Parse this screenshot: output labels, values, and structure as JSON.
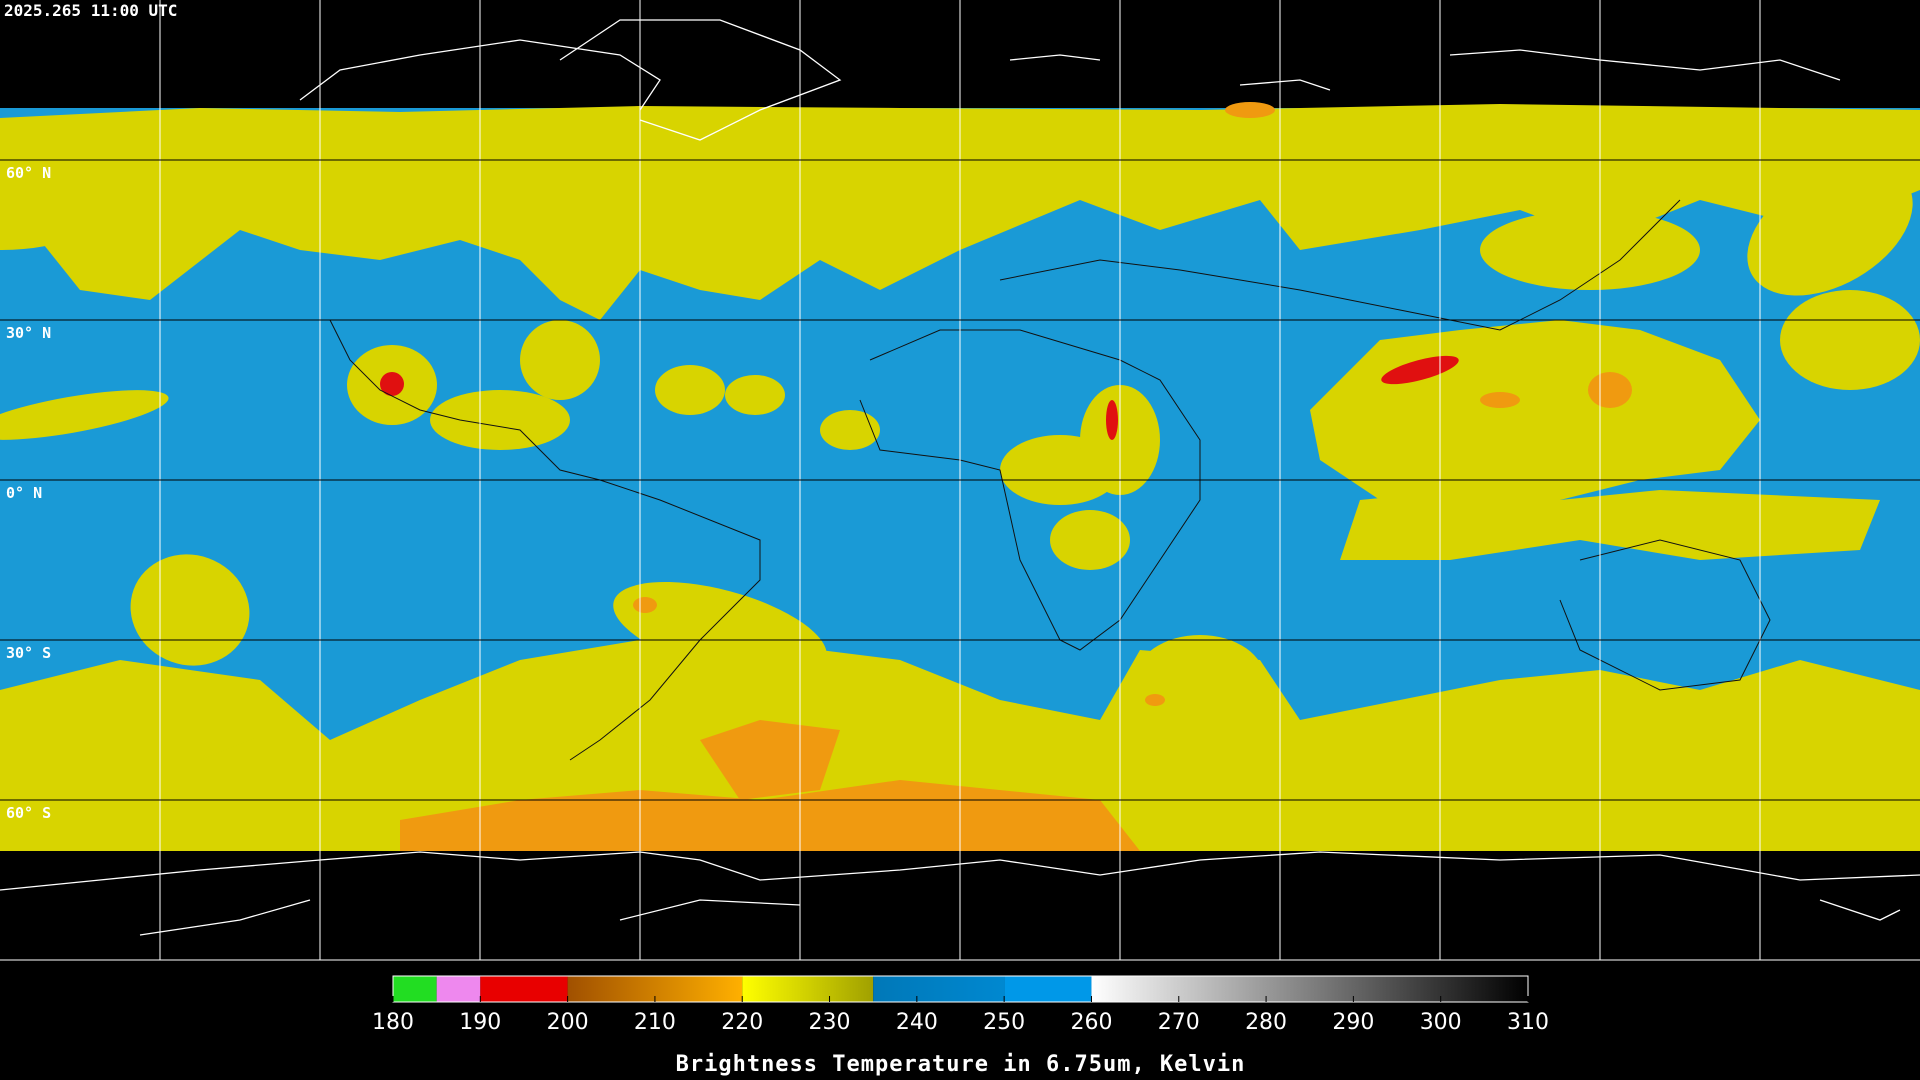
{
  "header": {
    "timestamp": "2025.265 11:00 UTC"
  },
  "map": {
    "lat_labels": [
      "60° N",
      "30° N",
      "0° N",
      "30° S",
      "60° S"
    ]
  },
  "colorbar": {
    "title": "Brightness Temperature in 6.75um, Kelvin",
    "range": [
      180,
      310
    ],
    "ticks": [
      180,
      190,
      200,
      210,
      220,
      230,
      240,
      250,
      260,
      270,
      280,
      290,
      300,
      310
    ],
    "segments": [
      {
        "from": 180,
        "to": 185,
        "colors": [
          "#22dd22",
          "#22dd22"
        ]
      },
      {
        "from": 185,
        "to": 190,
        "colors": [
          "#ee88ee",
          "#ee88ee"
        ]
      },
      {
        "from": 190,
        "to": 200,
        "colors": [
          "#e80000",
          "#e80000"
        ]
      },
      {
        "from": 200,
        "to": 220,
        "colors": [
          "#a05000",
          "#ffb000"
        ]
      },
      {
        "from": 220,
        "to": 235,
        "colors": [
          "#ffff00",
          "#a0a000"
        ]
      },
      {
        "from": 235,
        "to": 250,
        "colors": [
          "#0078b8",
          "#0088d0"
        ]
      },
      {
        "from": 250,
        "to": 260,
        "colors": [
          "#0098e8",
          "#0098e8"
        ]
      },
      {
        "from": 260,
        "to": 310,
        "colors": [
          "#ffffff",
          "#000000"
        ]
      }
    ]
  }
}
